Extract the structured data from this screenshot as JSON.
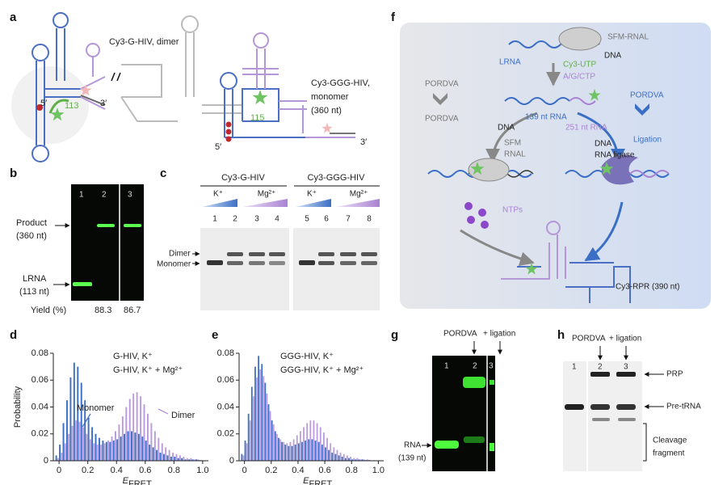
{
  "panel_letters": [
    "a",
    "b",
    "c",
    "d",
    "e",
    "f",
    "g",
    "h"
  ],
  "panels": {
    "a": {
      "dimer_label": "Cy3-G-HIV, dimer",
      "dimer_ends": [
        "5′",
        "3′"
      ],
      "dimer_length": "113",
      "monomer_label": [
        "Cy3-GGG-HIV,",
        "monomer",
        "(360 nt)"
      ],
      "monomer_length": "115",
      "monomer_ends": [
        "5′",
        "3′"
      ]
    },
    "b": {
      "lanes": [
        "1",
        "2",
        "3"
      ],
      "product": [
        "Product",
        "(360 nt)"
      ],
      "lrna": [
        "LRNA",
        "(113 nt)"
      ],
      "yield_label": "Yield (%)",
      "yields": [
        "88.3",
        "86.7"
      ]
    },
    "c": {
      "constructs": [
        "Cy3-G-HIV",
        "Cy3-GGG-HIV"
      ],
      "conditions": [
        [
          "K⁺",
          "Mg²⁺"
        ],
        [
          "K⁺",
          "Mg²⁺"
        ]
      ],
      "lanes": [
        "1",
        "2",
        "3",
        "4",
        "5",
        "6",
        "7",
        "8"
      ],
      "bands": [
        "Dimer",
        "Monomer"
      ]
    },
    "f": {
      "sfm_rnal": "SFM-RNAL",
      "dna_top": "DNA",
      "lrna": "LRNA",
      "substrates": [
        "Cy3-UTP",
        "A/G/CTP"
      ],
      "pordva_left": [
        "PORDVA",
        "PORDVA"
      ],
      "pordva_right": "PORDVA",
      "rna_139": "139 nt RNA",
      "dna_left": "DNA",
      "sfm_rnal_left": [
        "SFM",
        "RNAL"
      ],
      "rna_251": "251 nt RNA",
      "ligation": "Ligation",
      "dna_right": "DNA",
      "rna_ligase": "RNA ligase",
      "ntps": "NTPs",
      "product": "Cy3-RPR (390 nt)"
    },
    "g": {
      "treatments": [
        "PORDVA",
        "+ ligation"
      ],
      "lanes": [
        "1",
        "2",
        "3"
      ],
      "band": [
        "RNA",
        "(139 nt)"
      ]
    },
    "h": {
      "treatments": [
        "PORDVA",
        "+ ligation"
      ],
      "lanes": [
        "1",
        "2",
        "3"
      ],
      "bands": [
        "PRP",
        "Pre-tRNA"
      ],
      "fragment": [
        "Cleavage",
        "fragment"
      ]
    }
  },
  "chart_data": [
    {
      "type": "histogram",
      "ylabel": "Probability",
      "xlabel": {
        "main": "E",
        "sub": "FRET"
      },
      "bins": [
        -0.025,
        0,
        0.025,
        0.05,
        0.075,
        0.1,
        0.125,
        0.15,
        0.175,
        0.2,
        0.225,
        0.25,
        0.275,
        0.3,
        0.325,
        0.35,
        0.375,
        0.4,
        0.425,
        0.45,
        0.475,
        0.5,
        0.525,
        0.55,
        0.575,
        0.6,
        0.625,
        0.65,
        0.675,
        0.7,
        0.725,
        0.75,
        0.775,
        0.8,
        0.825,
        0.85,
        0.875,
        0.9,
        0.925,
        0.95,
        0.975,
        1,
        1.025
      ],
      "series": [
        {
          "name": "G-HIV, K⁺",
          "color": "#3b6fc6",
          "values": [
            0.004,
            0.012,
            0.028,
            0.045,
            0.062,
            0.073,
            0.07,
            0.058,
            0.045,
            0.032,
            0.025,
            0.02,
            0.017,
            0.015,
            0.014,
            0.014,
            0.015,
            0.016,
            0.018,
            0.02,
            0.022,
            0.022,
            0.021,
            0.02,
            0.018,
            0.015,
            0.012,
            0.01,
            0.008,
            0.006,
            0.005,
            0.004,
            0.003,
            0.003,
            0.002,
            0.002,
            0.001,
            0.001,
            0.001,
            0.001,
            0.0005,
            0.0003
          ]
        },
        {
          "name": "G-HIV, K⁺ + Mg²⁺",
          "color": "#a983d3",
          "values": [
            0.002,
            0.006,
            0.013,
            0.02,
            0.026,
            0.03,
            0.029,
            0.025,
            0.02,
            0.016,
            0.013,
            0.012,
            0.012,
            0.013,
            0.015,
            0.018,
            0.022,
            0.027,
            0.033,
            0.04,
            0.046,
            0.05,
            0.051,
            0.048,
            0.042,
            0.035,
            0.028,
            0.022,
            0.017,
            0.013,
            0.01,
            0.008,
            0.006,
            0.005,
            0.004,
            0.003,
            0.002,
            0.002,
            0.001,
            0.001,
            0.0005,
            0.0003
          ]
        }
      ],
      "annotations": [
        {
          "text": "Monomer",
          "color": "#3b6fc6"
        },
        {
          "text": "Dimer",
          "color": "#a983d3"
        }
      ],
      "xlim": [
        -0.04,
        1.04
      ],
      "ylim": [
        0,
        0.08
      ],
      "xticks": [
        0,
        0.2,
        0.4,
        0.6,
        0.8,
        {
          "value": 1,
          "label": "1.0"
        }
      ],
      "yticks": [
        0,
        0.02,
        0.04,
        0.06,
        0.08
      ]
    },
    {
      "type": "histogram",
      "xlabel": {
        "main": "E",
        "sub": "FRET"
      },
      "bins": [
        -0.025,
        0,
        0.025,
        0.05,
        0.075,
        0.1,
        0.125,
        0.15,
        0.175,
        0.2,
        0.225,
        0.25,
        0.275,
        0.3,
        0.325,
        0.35,
        0.375,
        0.4,
        0.425,
        0.45,
        0.475,
        0.5,
        0.525,
        0.55,
        0.575,
        0.6,
        0.625,
        0.65,
        0.675,
        0.7,
        0.725,
        0.75,
        0.775,
        0.8,
        0.825,
        0.85,
        0.875,
        0.9,
        0.925,
        0.95,
        0.975,
        1,
        1.025
      ],
      "series": [
        {
          "name": "GGG-HIV, K⁺",
          "color": "#3b6fc6",
          "values": [
            0.005,
            0.015,
            0.035,
            0.055,
            0.07,
            0.078,
            0.072,
            0.058,
            0.042,
            0.03,
            0.022,
            0.017,
            0.014,
            0.012,
            0.011,
            0.011,
            0.012,
            0.013,
            0.014,
            0.015,
            0.016,
            0.016,
            0.015,
            0.014,
            0.012,
            0.01,
            0.008,
            0.006,
            0.005,
            0.004,
            0.003,
            0.002,
            0.002,
            0.001,
            0.001,
            0.001,
            0.001,
            0.0005,
            0.0005,
            0.0003,
            0.0002,
            0.0001
          ]
        },
        {
          "name": "GGG-HIV, K⁺ + Mg²⁺",
          "color": "#a983d3",
          "values": [
            0.004,
            0.013,
            0.03,
            0.048,
            0.062,
            0.068,
            0.063,
            0.05,
            0.037,
            0.027,
            0.02,
            0.016,
            0.014,
            0.013,
            0.014,
            0.016,
            0.019,
            0.022,
            0.025,
            0.028,
            0.03,
            0.03,
            0.028,
            0.025,
            0.021,
            0.017,
            0.013,
            0.01,
            0.008,
            0.006,
            0.005,
            0.004,
            0.003,
            0.002,
            0.002,
            0.001,
            0.001,
            0.001,
            0.0005,
            0.0005,
            0.0003,
            0.0002
          ]
        }
      ],
      "xlim": [
        -0.04,
        1.04
      ],
      "ylim": [
        0,
        0.08
      ],
      "xticks": [
        0,
        0.2,
        0.4,
        0.6,
        0.8,
        {
          "value": 1,
          "label": "1.0"
        }
      ],
      "yticks": [
        0,
        0.02,
        0.04,
        0.06,
        0.08
      ]
    }
  ]
}
